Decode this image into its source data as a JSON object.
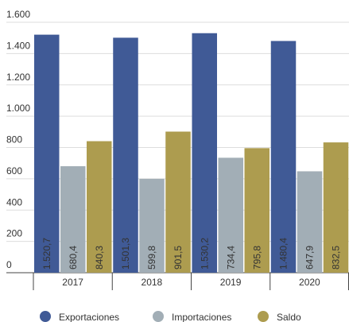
{
  "chart_data": {
    "type": "bar",
    "categories": [
      "2017",
      "2018",
      "2019",
      "2020"
    ],
    "series": [
      {
        "name": "Exportaciones",
        "color": "#405a96",
        "values": [
          1520.7,
          1501.3,
          1530.2,
          1480.4
        ],
        "value_labels": [
          "1.520,7",
          "1.501,3",
          "1.530,2",
          "1.480,4"
        ]
      },
      {
        "name": "Importaciones",
        "color": "#a2aeb6",
        "values": [
          680.4,
          599.8,
          734.4,
          647.9
        ],
        "value_labels": [
          "680,4",
          "599,8",
          "734,4",
          "647,9"
        ]
      },
      {
        "name": "Saldo",
        "color": "#ad9c4f",
        "values": [
          840.3,
          901.5,
          795.8,
          832.5
        ],
        "value_labels": [
          "840,3",
          "901,5",
          "795,8",
          "832,5"
        ]
      }
    ],
    "ylim": [
      0,
      1600
    ],
    "yticks": [
      0,
      200,
      400,
      600,
      800,
      {
        "value": 1000,
        "label": "1.000"
      },
      {
        "value": 1200,
        "label": "1.200"
      },
      {
        "value": 1400,
        "label": "1.400"
      },
      {
        "value": 1600,
        "label": "1.600"
      }
    ],
    "grid": true,
    "legend": "bottom"
  }
}
